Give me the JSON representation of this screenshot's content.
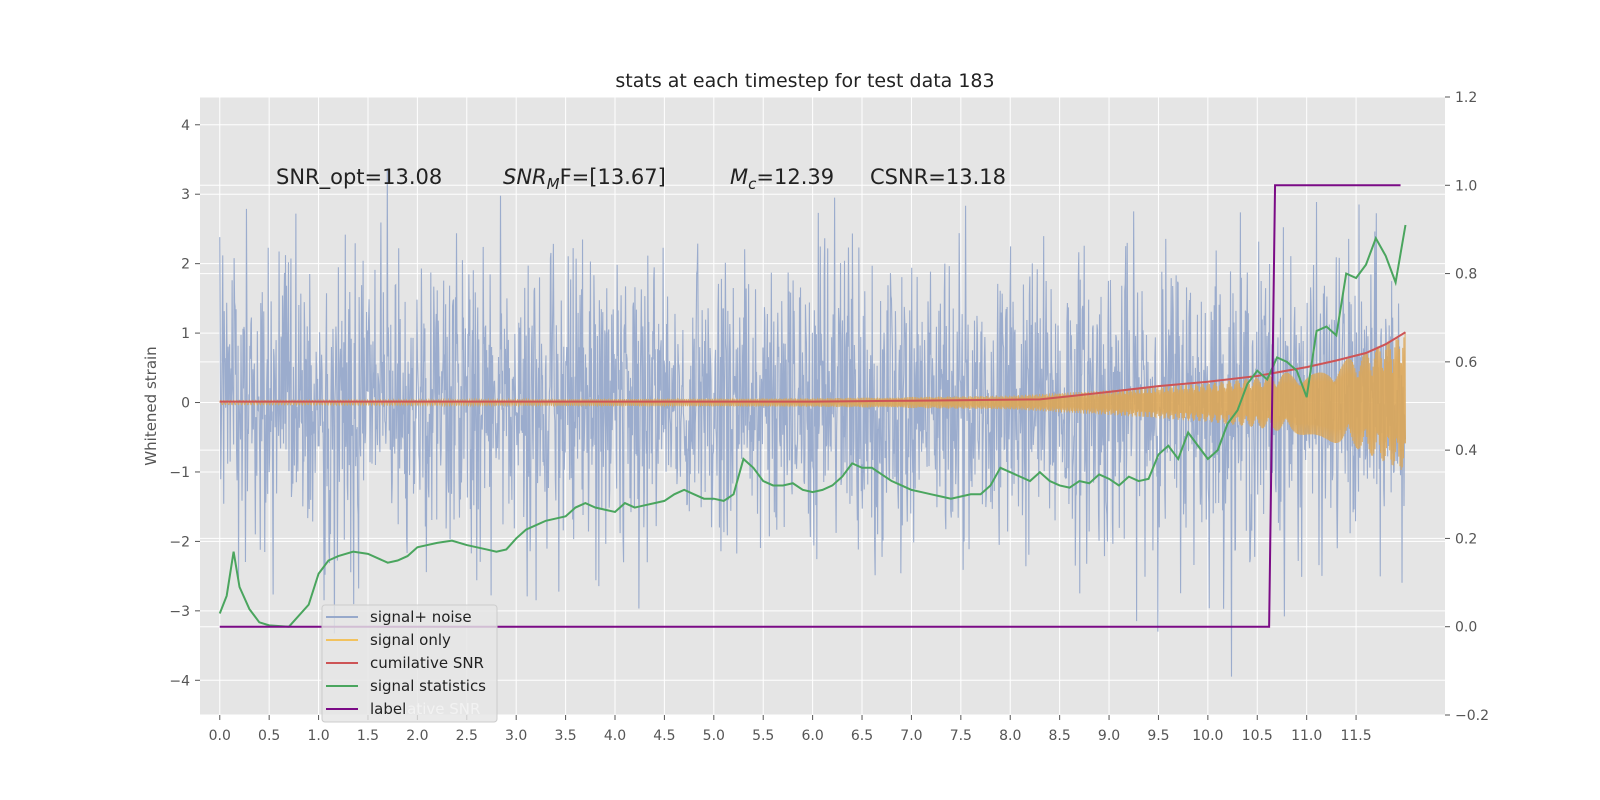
{
  "chart_data": {
    "type": "line",
    "title": "stats at each timestep for test data 183",
    "ylabel": "Whitened strain",
    "xlabel": "",
    "xlim": [
      -0.2,
      12.4
    ],
    "ylim": [
      -4.5,
      4.4
    ],
    "y2lim": [
      -0.2,
      1.2
    ],
    "grid": true,
    "x_ticks": [
      "0.0",
      "0.5",
      "1.0",
      "1.5",
      "2.0",
      "2.5",
      "3.0",
      "3.5",
      "4.0",
      "4.5",
      "5.0",
      "5.5",
      "6.0",
      "6.5",
      "7.0",
      "7.5",
      "8.0",
      "8.5",
      "9.0",
      "9.5",
      "10.0",
      "10.5",
      "11.0",
      "11.5"
    ],
    "y_ticks": [
      "4",
      "3",
      "2",
      "1",
      "0",
      "−1",
      "−2",
      "−3",
      "−4"
    ],
    "y2_ticks": [
      "1.2",
      "1.0",
      "0.8",
      "0.6",
      "0.4",
      "0.2",
      "0.0",
      "−0.2"
    ],
    "annotations": {
      "snr_opt": "SNR_opt=13.08",
      "snr_mf_main": "SNR",
      "snr_mf_sub": "M",
      "snr_mf_rest": "F=[13.67]",
      "mc_main": "M",
      "mc_sub": "c",
      "mc_rest": "=12.39",
      "csnr": "CSNR=13.18"
    },
    "legend": {
      "placement": "lower-left",
      "entries": [
        "signal+ noise",
        "signal only",
        "cumilative SNR",
        "signal statistics",
        "label"
      ],
      "ghost_text": "lative SNR"
    },
    "series": [
      {
        "name": "signal+ noise",
        "color": "#97a9cb",
        "axis": "left",
        "note": "whitened strain noise, roughly unit variance, x from 0 to 12"
      },
      {
        "name": "signal only",
        "color": "#dba658",
        "axis": "left",
        "envelope": {
          "x": [
            0,
            6,
            8,
            9,
            10,
            10.5,
            11,
            11.5,
            12.0
          ],
          "amp": [
            0.03,
            0.06,
            0.1,
            0.18,
            0.28,
            0.36,
            0.48,
            0.66,
            1.0
          ]
        }
      },
      {
        "name": "cumilative SNR",
        "color": "#cd5456",
        "axis": "right",
        "x": [
          0.0,
          2.0,
          4.0,
          6.0,
          7.0,
          8.3,
          8.6,
          9.0,
          9.5,
          10.0,
          10.5,
          11.0,
          11.3,
          11.6,
          11.8,
          12.0
        ],
        "values": [
          0.51,
          0.51,
          0.51,
          0.51,
          0.512,
          0.515,
          0.522,
          0.532,
          0.545,
          0.555,
          0.568,
          0.588,
          0.603,
          0.62,
          0.64,
          0.667
        ]
      },
      {
        "name": "signal statistics",
        "color": "#4aa55e",
        "axis": "right",
        "x": [
          0.0,
          0.07,
          0.14,
          0.2,
          0.3,
          0.4,
          0.5,
          0.7,
          0.9,
          1.0,
          1.1,
          1.2,
          1.35,
          1.5,
          1.7,
          1.8,
          1.9,
          2.0,
          2.1,
          2.2,
          2.35,
          2.5,
          2.7,
          2.8,
          2.9,
          3.0,
          3.1,
          3.2,
          3.3,
          3.4,
          3.5,
          3.6,
          3.7,
          3.8,
          3.9,
          4.0,
          4.1,
          4.2,
          4.3,
          4.4,
          4.5,
          4.6,
          4.7,
          4.8,
          4.9,
          5.0,
          5.1,
          5.2,
          5.3,
          5.4,
          5.5,
          5.6,
          5.7,
          5.8,
          5.9,
          6.0,
          6.1,
          6.2,
          6.3,
          6.4,
          6.5,
          6.6,
          6.7,
          6.8,
          6.9,
          7.0,
          7.1,
          7.2,
          7.3,
          7.4,
          7.5,
          7.6,
          7.7,
          7.8,
          7.9,
          8.0,
          8.1,
          8.2,
          8.3,
          8.4,
          8.5,
          8.6,
          8.7,
          8.8,
          8.9,
          9.0,
          9.1,
          9.2,
          9.3,
          9.4,
          9.5,
          9.6,
          9.7,
          9.8,
          9.9,
          10.0,
          10.1,
          10.2,
          10.3,
          10.4,
          10.5,
          10.6,
          10.7,
          10.8,
          10.9,
          11.0,
          11.1,
          11.2,
          11.3,
          11.4,
          11.5,
          11.6,
          11.7,
          11.8,
          11.9,
          12.0
        ],
        "values": [
          0.03,
          0.07,
          0.17,
          0.09,
          0.04,
          0.01,
          0.003,
          0.0,
          0.05,
          0.12,
          0.15,
          0.16,
          0.17,
          0.165,
          0.145,
          0.15,
          0.16,
          0.18,
          0.185,
          0.19,
          0.195,
          0.185,
          0.175,
          0.17,
          0.175,
          0.2,
          0.22,
          0.23,
          0.24,
          0.245,
          0.25,
          0.27,
          0.28,
          0.27,
          0.265,
          0.26,
          0.28,
          0.27,
          0.275,
          0.28,
          0.285,
          0.3,
          0.31,
          0.3,
          0.29,
          0.29,
          0.285,
          0.3,
          0.38,
          0.36,
          0.33,
          0.32,
          0.32,
          0.325,
          0.31,
          0.305,
          0.31,
          0.32,
          0.34,
          0.37,
          0.36,
          0.36,
          0.345,
          0.33,
          0.32,
          0.31,
          0.305,
          0.3,
          0.295,
          0.29,
          0.295,
          0.3,
          0.3,
          0.32,
          0.36,
          0.35,
          0.34,
          0.33,
          0.35,
          0.33,
          0.32,
          0.315,
          0.33,
          0.325,
          0.345,
          0.335,
          0.32,
          0.34,
          0.33,
          0.335,
          0.39,
          0.41,
          0.38,
          0.44,
          0.41,
          0.38,
          0.4,
          0.46,
          0.49,
          0.55,
          0.58,
          0.56,
          0.61,
          0.6,
          0.58,
          0.52,
          0.67,
          0.68,
          0.66,
          0.8,
          0.79,
          0.82,
          0.88,
          0.84,
          0.78,
          0.91
        ]
      },
      {
        "name": "label",
        "color": "#7b0b86",
        "axis": "right",
        "x": [
          0.0,
          10.62,
          10.68,
          11.95
        ],
        "values": [
          0.0,
          0.0,
          1.0,
          1.0
        ]
      }
    ]
  }
}
